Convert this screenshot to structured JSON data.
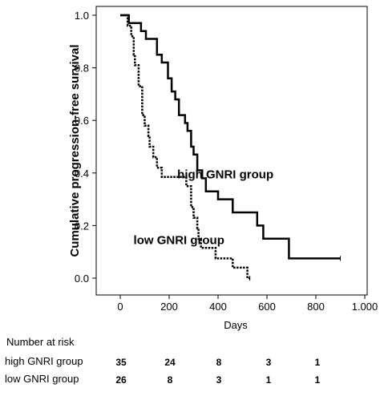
{
  "chart_data": {
    "type": "line",
    "subtype": "kaplan-meier",
    "title": "",
    "xlabel": "Days",
    "ylabel": "Cumulative progression-free survival",
    "xlim": [
      0,
      1000
    ],
    "ylim": [
      0,
      1.0
    ],
    "x_ticks": [
      0,
      200,
      400,
      600,
      800,
      1000
    ],
    "x_tick_labels": [
      "0",
      "200",
      "400",
      "600",
      "800",
      "1.000"
    ],
    "y_ticks": [
      0.0,
      0.2,
      0.4,
      0.6,
      0.8,
      1.0
    ],
    "y_tick_labels": [
      "0.0",
      "0.2",
      "0.4",
      "0.6",
      "0.8",
      "1.0"
    ],
    "grid": false,
    "series": [
      {
        "name": "high GNRI group",
        "line_style": "solid",
        "color": "#000000",
        "points": [
          [
            0,
            1.0
          ],
          [
            35,
            1.0
          ],
          [
            35,
            0.97
          ],
          [
            85,
            0.97
          ],
          [
            85,
            0.94
          ],
          [
            105,
            0.94
          ],
          [
            105,
            0.91
          ],
          [
            150,
            0.91
          ],
          [
            150,
            0.85
          ],
          [
            170,
            0.85
          ],
          [
            170,
            0.82
          ],
          [
            195,
            0.82
          ],
          [
            195,
            0.76
          ],
          [
            210,
            0.76
          ],
          [
            210,
            0.71
          ],
          [
            225,
            0.71
          ],
          [
            225,
            0.68
          ],
          [
            240,
            0.68
          ],
          [
            240,
            0.62
          ],
          [
            265,
            0.62
          ],
          [
            265,
            0.59
          ],
          [
            275,
            0.59
          ],
          [
            275,
            0.56
          ],
          [
            290,
            0.56
          ],
          [
            290,
            0.5
          ],
          [
            300,
            0.5
          ],
          [
            300,
            0.47
          ],
          [
            315,
            0.47
          ],
          [
            315,
            0.41
          ],
          [
            335,
            0.41
          ],
          [
            335,
            0.38
          ],
          [
            350,
            0.38
          ],
          [
            350,
            0.33
          ],
          [
            400,
            0.33
          ],
          [
            400,
            0.3
          ],
          [
            460,
            0.3
          ],
          [
            460,
            0.25
          ],
          [
            560,
            0.25
          ],
          [
            560,
            0.2
          ],
          [
            585,
            0.2
          ],
          [
            585,
            0.15
          ],
          [
            690,
            0.15
          ],
          [
            690,
            0.075
          ],
          [
            900,
            0.075
          ]
        ]
      },
      {
        "name": "low GNRI group",
        "line_style": "dotted",
        "color": "#000000",
        "points": [
          [
            0,
            1.0
          ],
          [
            30,
            1.0
          ],
          [
            30,
            0.96
          ],
          [
            45,
            0.96
          ],
          [
            45,
            0.92
          ],
          [
            55,
            0.92
          ],
          [
            55,
            0.85
          ],
          [
            60,
            0.85
          ],
          [
            60,
            0.81
          ],
          [
            75,
            0.81
          ],
          [
            75,
            0.73
          ],
          [
            90,
            0.73
          ],
          [
            90,
            0.62
          ],
          [
            100,
            0.62
          ],
          [
            100,
            0.58
          ],
          [
            115,
            0.58
          ],
          [
            115,
            0.54
          ],
          [
            120,
            0.54
          ],
          [
            120,
            0.5
          ],
          [
            135,
            0.5
          ],
          [
            135,
            0.46
          ],
          [
            150,
            0.46
          ],
          [
            150,
            0.42
          ],
          [
            170,
            0.42
          ],
          [
            170,
            0.385
          ],
          [
            270,
            0.385
          ],
          [
            270,
            0.35
          ],
          [
            290,
            0.35
          ],
          [
            290,
            0.27
          ],
          [
            300,
            0.27
          ],
          [
            300,
            0.23
          ],
          [
            315,
            0.23
          ],
          [
            315,
            0.19
          ],
          [
            320,
            0.19
          ],
          [
            320,
            0.15
          ],
          [
            330,
            0.15
          ],
          [
            330,
            0.115
          ],
          [
            390,
            0.115
          ],
          [
            390,
            0.075
          ],
          [
            460,
            0.075
          ],
          [
            460,
            0.04
          ],
          [
            520,
            0.04
          ],
          [
            520,
            0.0
          ],
          [
            530,
            0.0
          ]
        ]
      }
    ],
    "annotations": [
      {
        "text": "high GNRI group",
        "x": 430,
        "y": 0.38
      },
      {
        "text": "low GNRI group",
        "x": 240,
        "y": 0.13
      }
    ],
    "risk_table": {
      "title": "Number at risk",
      "rows": [
        {
          "label": "high GNRI group",
          "values": [
            "35",
            "24",
            "8",
            "3",
            "1"
          ]
        },
        {
          "label": "low GNRI group",
          "values": [
            "26",
            "8",
            "3",
            "1",
            "1"
          ]
        }
      ]
    }
  }
}
